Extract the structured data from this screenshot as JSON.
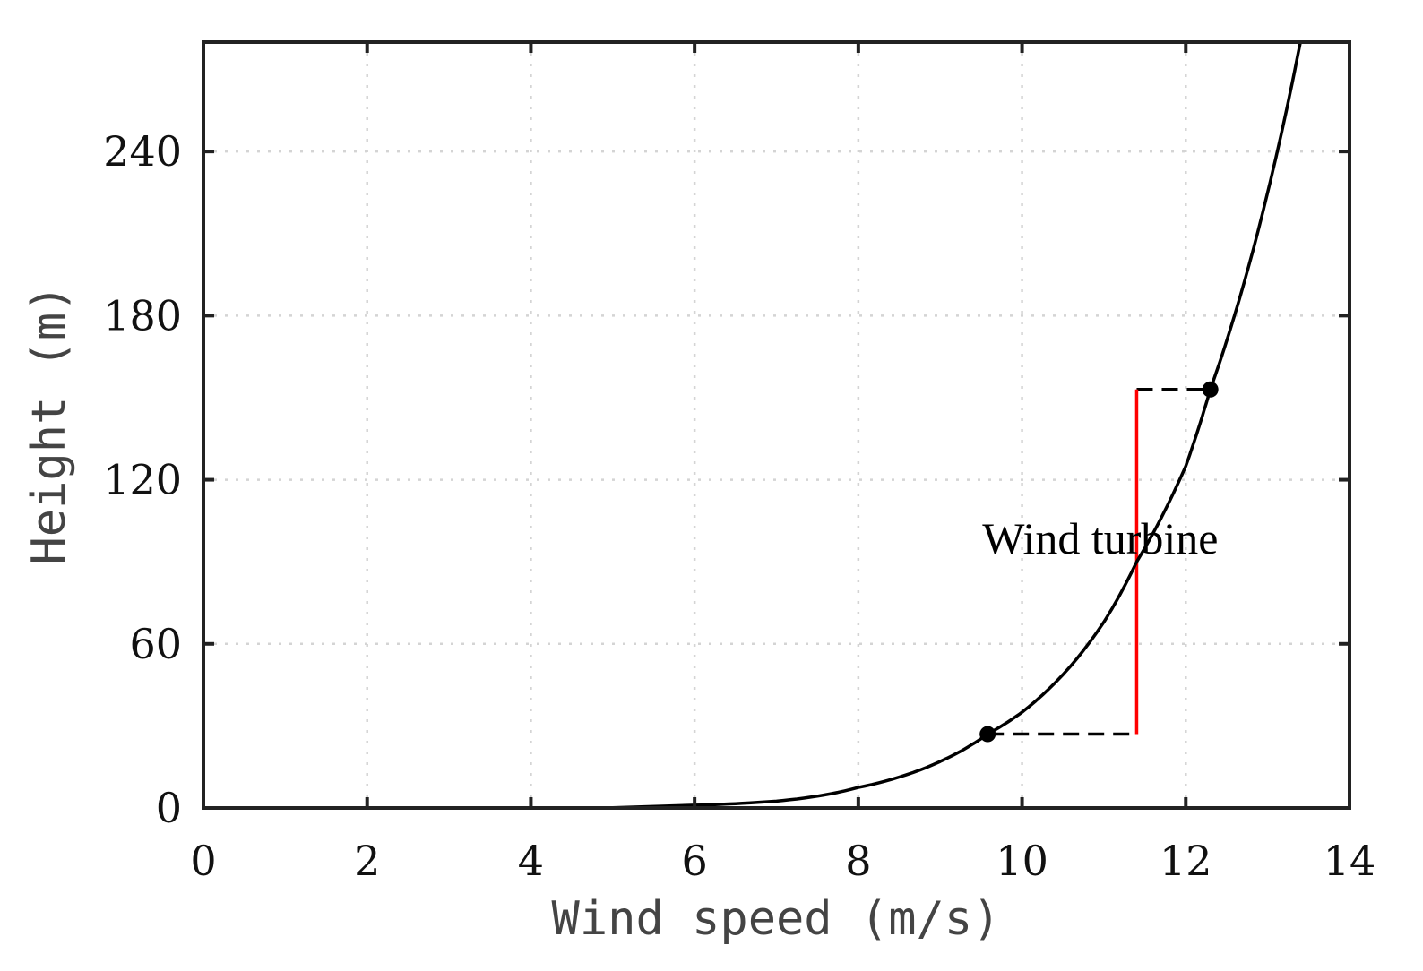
{
  "chart_data": {
    "type": "line",
    "title": "",
    "xlabel": "Wind speed (m/s)",
    "ylabel": "Height (m)",
    "xlim": [
      0,
      14
    ],
    "ylim": [
      0,
      280
    ],
    "x_ticks": [
      0,
      2,
      4,
      6,
      8,
      10,
      12,
      14
    ],
    "y_ticks": [
      0,
      60,
      120,
      180,
      240
    ],
    "x_tick_labels": [
      "0",
      "2",
      "4",
      "6",
      "8",
      "10",
      "12",
      "14"
    ],
    "y_tick_labels": [
      "0",
      "60",
      "120",
      "180",
      "240"
    ],
    "grid": true,
    "grid_style": "dotted",
    "series": [
      {
        "color": "#000000",
        "style": "solid",
        "profile": "power_law",
        "x": [
          6.0,
          7.0,
          8.0,
          9.0,
          9.58,
          10.0,
          11.0,
          11.4,
          12.0,
          12.3,
          13.0,
          13.4
        ],
        "y": [
          1.0,
          2.5,
          7.5,
          17.0,
          27.0,
          35.0,
          68.0,
          90.0,
          125.0,
          153.0,
          225.0,
          280.0
        ]
      }
    ],
    "markers": [
      {
        "x": 9.58,
        "y": 27,
        "color": "#000000"
      },
      {
        "x": 12.3,
        "y": 153,
        "color": "#000000"
      }
    ],
    "reference_lines": [
      {
        "name": "lower-dashed",
        "x": [
          9.58,
          11.4
        ],
        "y": [
          27,
          27
        ],
        "color": "#000000",
        "style": "dashed"
      },
      {
        "name": "upper-dashed",
        "x": [
          11.4,
          12.3
        ],
        "y": [
          153,
          153
        ],
        "color": "#000000",
        "style": "dashed"
      },
      {
        "name": "turbine-span",
        "x": [
          11.4,
          11.4
        ],
        "y": [
          27,
          153
        ],
        "color": "#ff0000",
        "style": "solid"
      }
    ],
    "annotations": [
      {
        "text": "Wind turbine",
        "x": 10.5,
        "y": 93
      }
    ]
  }
}
